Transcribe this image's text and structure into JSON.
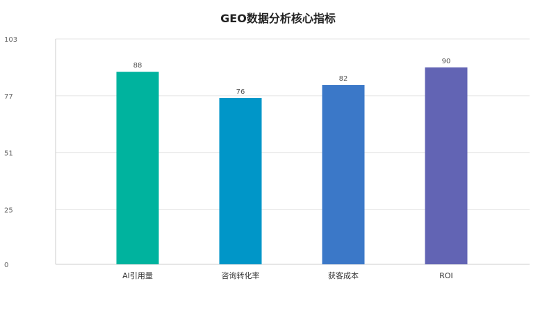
{
  "chart_data": {
    "type": "bar",
    "title": "GEO数据分析核心指标",
    "xlabel": "",
    "ylabel": "",
    "categories": [
      "AI引用量",
      "咨询转化率",
      "获客成本",
      "ROI"
    ],
    "values": [
      88,
      76,
      82,
      90
    ],
    "value_labels": [
      "88",
      "76",
      "82",
      "90"
    ],
    "bar_colors": [
      "#00b39e",
      "#0096c8",
      "#3b78c8",
      "#6264b4"
    ],
    "ylim": [
      0,
      103
    ],
    "yticks": [
      0,
      25,
      51,
      77,
      103
    ],
    "ytick_labels": [
      "0",
      "25",
      "51",
      "77",
      "103"
    ],
    "grid": true,
    "legend": "none"
  }
}
